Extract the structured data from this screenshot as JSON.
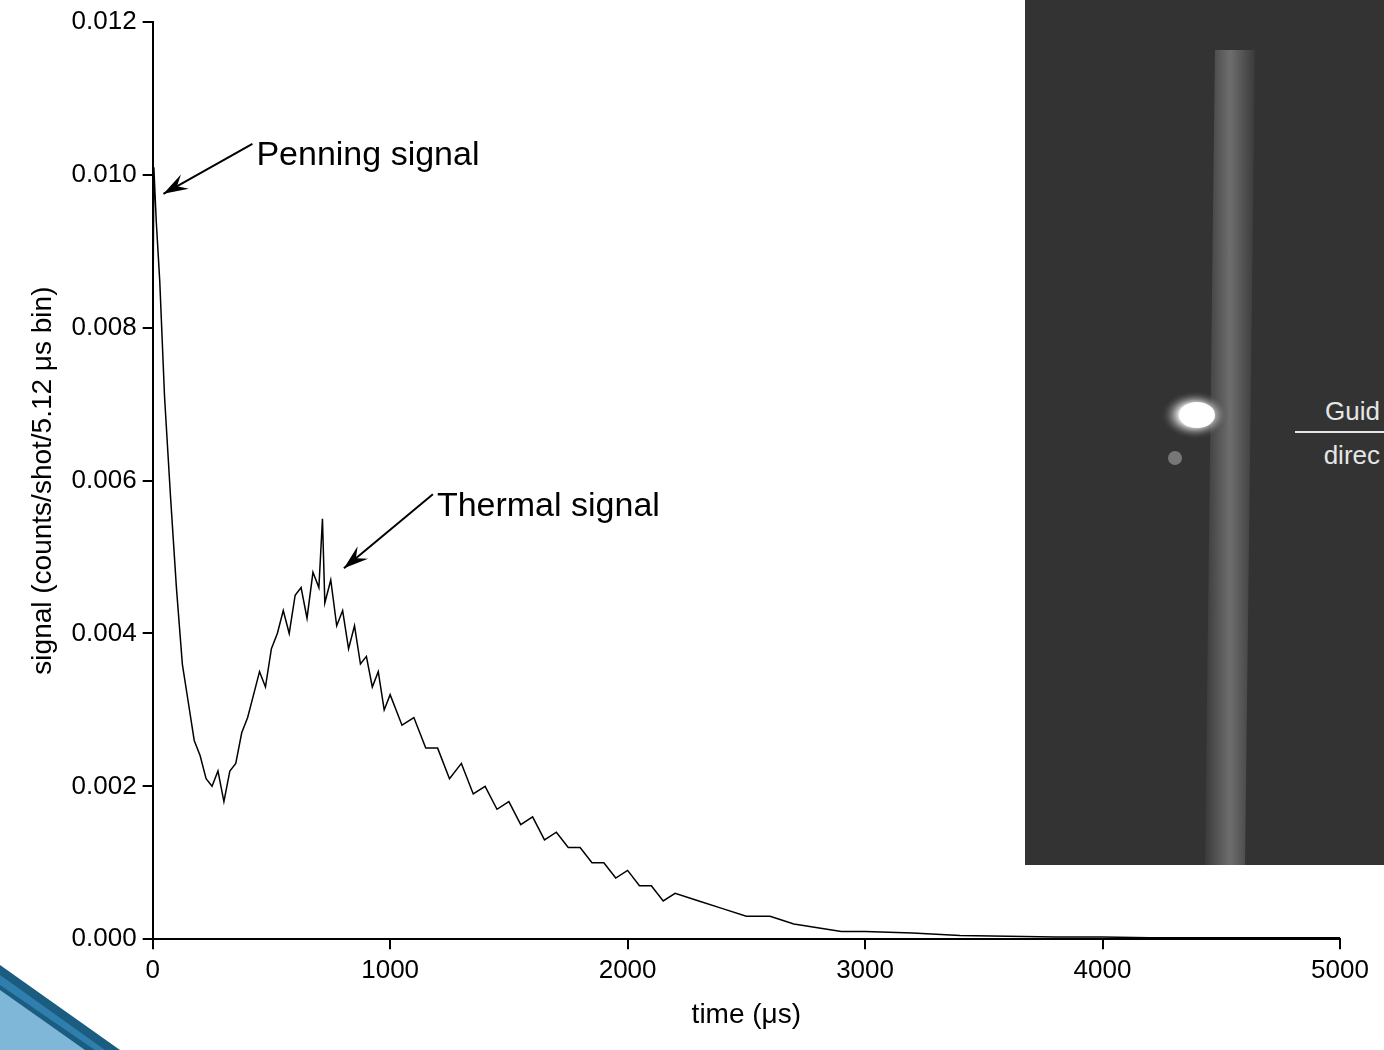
{
  "chart_data": {
    "type": "line",
    "x_label": "time (μs)",
    "y_label": "signal (counts/shot/5.12 μs bin)",
    "xlim": [
      0,
      5000
    ],
    "xticks": [
      0,
      1000,
      2000,
      3000,
      4000,
      5000
    ],
    "ylim": [
      0,
      0.012
    ],
    "yticks": [
      {
        "value": 0,
        "label": "0.000"
      },
      {
        "value": 0.002,
        "label": "0.002"
      },
      {
        "value": 0.004,
        "label": "0.004"
      },
      {
        "value": 0.006,
        "label": "0.006"
      },
      {
        "value": 0.008,
        "label": "0.008"
      },
      {
        "value": 0.01,
        "label": "0.010"
      },
      {
        "value": 0.012,
        "label": "0.012"
      }
    ],
    "grid": false,
    "color": "#000000",
    "x": [
      0,
      5,
      15,
      30,
      50,
      75,
      100,
      125,
      150,
      175,
      200,
      225,
      250,
      275,
      300,
      325,
      350,
      375,
      400,
      425,
      450,
      475,
      500,
      525,
      550,
      575,
      600,
      625,
      650,
      675,
      700,
      715,
      725,
      750,
      775,
      800,
      825,
      850,
      875,
      900,
      925,
      950,
      975,
      1000,
      1050,
      1100,
      1150,
      1200,
      1250,
      1300,
      1350,
      1400,
      1450,
      1500,
      1550,
      1600,
      1650,
      1700,
      1750,
      1800,
      1850,
      1900,
      1950,
      2000,
      2050,
      2100,
      2150,
      2200,
      2300,
      2400,
      2500,
      2600,
      2700,
      2800,
      2900,
      3000,
      3200,
      3400,
      3600,
      3800,
      4000,
      4200,
      4400,
      4600,
      4800,
      5000
    ],
    "values": [
      0.0075,
      0.0101,
      0.0094,
      0.0086,
      0.0071,
      0.0058,
      0.0046,
      0.0036,
      0.0031,
      0.0026,
      0.0024,
      0.0021,
      0.002,
      0.0022,
      0.0018,
      0.0022,
      0.0023,
      0.0027,
      0.0029,
      0.0032,
      0.0035,
      0.0033,
      0.0038,
      0.004,
      0.0043,
      0.004,
      0.0045,
      0.0046,
      0.0042,
      0.0048,
      0.0046,
      0.0055,
      0.0044,
      0.0047,
      0.0041,
      0.0043,
      0.0038,
      0.0041,
      0.0036,
      0.0037,
      0.0033,
      0.0035,
      0.003,
      0.0032,
      0.0028,
      0.0029,
      0.0025,
      0.0025,
      0.0021,
      0.0023,
      0.0019,
      0.002,
      0.0017,
      0.0018,
      0.0015,
      0.0016,
      0.0013,
      0.0014,
      0.0012,
      0.0012,
      0.001,
      0.001,
      0.0008,
      0.0009,
      0.0007,
      0.0007,
      0.0005,
      0.0006,
      0.0005,
      0.0004,
      0.0003,
      0.0003,
      0.0002,
      0.00015,
      0.0001,
      0.0001,
      8e-05,
      5e-05,
      4e-05,
      3e-05,
      3e-05,
      2e-05,
      2e-05,
      2e-05,
      2e-05,
      2e-05
    ],
    "annotations": [
      {
        "text": "Penning signal",
        "x": 20,
        "y": 0.0097
      },
      {
        "text": "Thermal signal",
        "x": 780,
        "y": 0.0048
      }
    ],
    "inset_labels": [
      "Guid",
      "direc"
    ]
  }
}
